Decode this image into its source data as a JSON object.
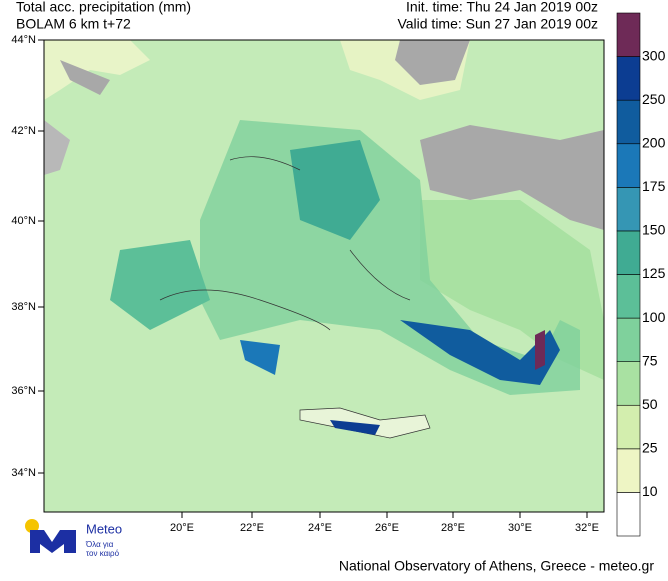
{
  "header": {
    "title_left": [
      "Total acc. precipitation (mm)",
      "BOLAM 6 km t+72"
    ],
    "title_right": [
      "Init. time: Thu 24 Jan 2019 00z",
      "Valid time: Sun 27 Jan 2019 00z"
    ]
  },
  "map": {
    "lat_labels": [
      "44°N",
      "42°N",
      "40°N",
      "38°N",
      "36°N",
      "34°N"
    ],
    "lon_labels": [
      "20°E",
      "22°E",
      "24°E",
      "26°E",
      "28°E",
      "30°E",
      "32°E"
    ]
  },
  "colorbar": {
    "levels": [
      10,
      25,
      50,
      75,
      100,
      125,
      150,
      175,
      200,
      250,
      300
    ],
    "colors": [
      "#ffffff",
      "#eef5c4",
      "#d3eeae",
      "#a9e1a2",
      "#7fd19c",
      "#5cbf98",
      "#40ab93",
      "#3596b4",
      "#1b78b8",
      "#105c9e",
      "#0c3d92",
      "#6e2a57"
    ]
  },
  "logo": {
    "name": "Meteo",
    "tagline": [
      "Όλα για",
      "τον καιρό"
    ]
  },
  "footer": "National Observatory of Athens, Greece - meteo.gr"
}
